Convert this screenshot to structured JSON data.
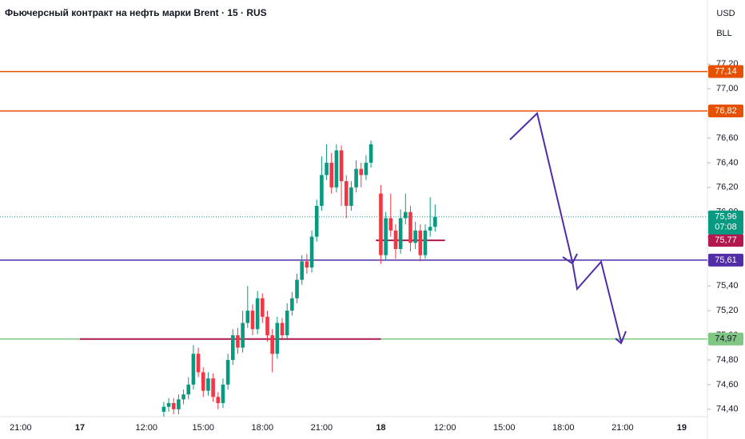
{
  "chart_data": {
    "type": "candlestick",
    "title": "Фьючерсный контракт на нефть марки Brent · 15 · RUS",
    "currency": "USD",
    "unit": "BLL",
    "xlim": [
      -4.2,
      139.2
    ],
    "ylim": [
      74.34,
      77.72
    ],
    "xticks": [
      {
        "value": 0,
        "label": "21:00"
      },
      {
        "value": 12,
        "label": "17"
      },
      {
        "value": 25.5,
        "label": "12:00"
      },
      {
        "value": 37,
        "label": "15:00"
      },
      {
        "value": 49,
        "label": "18:00"
      },
      {
        "value": 61,
        "label": "21:00"
      },
      {
        "value": 73,
        "label": "18"
      },
      {
        "value": 86,
        "label": "12:00"
      },
      {
        "value": 98,
        "label": "15:00"
      },
      {
        "value": 110,
        "label": "18:00"
      },
      {
        "value": 122,
        "label": "21:00"
      },
      {
        "value": 134,
        "label": "19"
      }
    ],
    "yticks": [
      {
        "value": 77.2,
        "label": "77,20"
      },
      {
        "value": 77,
        "label": "77,00"
      },
      {
        "value": 76.8,
        "label": "76,80"
      },
      {
        "value": 76.6,
        "label": "76,60"
      },
      {
        "value": 76.4,
        "label": "76,40"
      },
      {
        "value": 76.2,
        "label": "76,20"
      },
      {
        "value": 76,
        "label": "76,00"
      },
      {
        "value": 75.8,
        "label": "75,80"
      },
      {
        "value": 75.6,
        "label": "75,60"
      },
      {
        "value": 75.4,
        "label": "75,40"
      },
      {
        "value": 75.2,
        "label": "75,20"
      },
      {
        "value": 75,
        "label": "75,00"
      },
      {
        "value": 74.8,
        "label": "74,80"
      },
      {
        "value": 74.6,
        "label": "74,60"
      },
      {
        "value": 74.4,
        "label": "74,40"
      }
    ],
    "up_color": "#089981",
    "down_color": "#f23645",
    "x": [
      29,
      30,
      31,
      32,
      33,
      34,
      35,
      36,
      37,
      38,
      39,
      40,
      41,
      42,
      43,
      44,
      45,
      46,
      47,
      48,
      49,
      50,
      51,
      52,
      53,
      54,
      55,
      56,
      57,
      58,
      59,
      60,
      61,
      62,
      63,
      64,
      65,
      66,
      67,
      68,
      69,
      70,
      71,
      73,
      74,
      75,
      76,
      77,
      78,
      79,
      80,
      81,
      82,
      83,
      84
    ],
    "open": [
      74.38,
      74.42,
      74.45,
      74.4,
      74.48,
      74.52,
      74.6,
      74.85,
      74.7,
      74.55,
      74.65,
      74.5,
      74.45,
      74.6,
      74.8,
      75.0,
      74.9,
      75.1,
      75.2,
      75.05,
      75.3,
      75.15,
      75.0,
      74.85,
      75.1,
      75.0,
      75.2,
      75.3,
      75.45,
      75.6,
      75.55,
      75.8,
      76.05,
      76.3,
      76.4,
      76.2,
      76.5,
      76.25,
      76.05,
      76.2,
      76.35,
      76.3,
      76.4,
      76.15,
      75.65,
      75.95,
      75.85,
      75.7,
      75.95,
      76.0,
      75.75,
      75.85,
      75.65,
      75.85,
      75.88
    ],
    "high": [
      74.46,
      74.49,
      74.49,
      74.52,
      74.56,
      74.66,
      74.92,
      74.9,
      74.74,
      74.7,
      74.69,
      74.54,
      74.65,
      74.85,
      75.05,
      75.06,
      75.2,
      75.4,
      75.25,
      75.36,
      75.34,
      75.2,
      75.05,
      75.15,
      75.14,
      75.26,
      75.35,
      75.5,
      75.65,
      75.66,
      75.85,
      76.1,
      76.45,
      76.55,
      76.48,
      76.55,
      76.54,
      76.3,
      76.25,
      76.42,
      76.4,
      76.46,
      76.58,
      76.22,
      76.0,
      76.15,
      75.9,
      76.02,
      76.15,
      76.05,
      75.92,
      75.9,
      75.9,
      76.12,
      76.06
    ],
    "low": [
      74.34,
      74.38,
      74.36,
      74.36,
      74.44,
      74.48,
      74.56,
      74.66,
      74.5,
      74.51,
      74.46,
      74.4,
      74.41,
      74.56,
      74.76,
      74.85,
      74.86,
      75.06,
      75.0,
      75.01,
      75.1,
      74.95,
      74.7,
      74.81,
      74.96,
      74.96,
      75.16,
      75.26,
      75.41,
      75.5,
      75.51,
      75.76,
      76.01,
      76.26,
      76.15,
      76.16,
      76.05,
      75.95,
      76.01,
      76.16,
      76.2,
      76.26,
      76.36,
      75.58,
      75.61,
      75.8,
      75.62,
      75.66,
      75.9,
      75.68,
      75.7,
      75.6,
      75.62,
      75.8,
      75.84
    ],
    "close": [
      74.42,
      74.45,
      74.4,
      74.48,
      74.52,
      74.6,
      74.85,
      74.7,
      74.55,
      74.65,
      74.5,
      74.45,
      74.6,
      74.8,
      75.0,
      74.9,
      75.1,
      75.2,
      75.05,
      75.3,
      75.15,
      75.0,
      74.85,
      75.1,
      75.0,
      75.2,
      75.3,
      75.45,
      75.6,
      75.55,
      75.8,
      76.05,
      76.3,
      76.4,
      76.2,
      76.5,
      76.25,
      76.05,
      76.2,
      76.35,
      76.3,
      76.4,
      76.55,
      75.65,
      75.95,
      75.85,
      75.7,
      75.95,
      76.0,
      75.75,
      75.85,
      75.65,
      75.85,
      75.88,
      75.96
    ],
    "levels": [
      {
        "value": 77.14,
        "label": "77,14",
        "color": "#e65100"
      },
      {
        "value": 76.82,
        "label": "76,82",
        "color": "#e65100"
      },
      {
        "value": 75.61,
        "label": "75,61",
        "color": "#512da8"
      },
      {
        "value": 74.97,
        "label": "74,97",
        "color": "#81c784"
      }
    ],
    "segments": [
      {
        "value": 74.97,
        "from": 12,
        "to": 73,
        "color": "#b2184d"
      },
      {
        "value": 75.77,
        "from": 72,
        "to": 86,
        "label": "75,77",
        "color": "#b2184d"
      }
    ],
    "last_price": {
      "value": 75.96,
      "label": "75,96",
      "countdown": "07:08",
      "color": "#089981"
    }
  }
}
